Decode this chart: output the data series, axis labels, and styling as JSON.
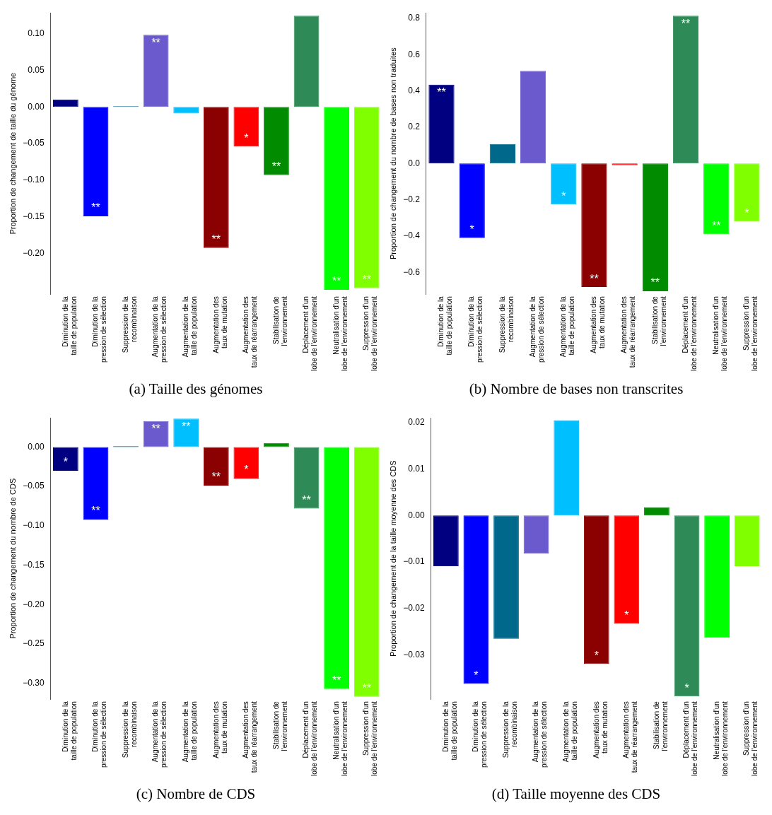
{
  "chart_data": [
    {
      "type": "bar",
      "title": "(a) Taille des génomes",
      "ylabel": "Proportion de changement de taille du génome",
      "categories": [
        "Diminution de la\ntaille de population",
        "Diminution de la\npression de sélection",
        "Suppression de la\nrecombinaison",
        "Augmentation de la\npression de sélection",
        "Augmentation de la\ntaille de population",
        "Augmentation des\ntaux de mutation",
        "Augmentation des\ntaux de réarrangement",
        "Stabilisation de\nl'environnement",
        "Déplacement d'un\nlobe de l'environnement",
        "Neutralisation d'un\nlobe de l'environnement",
        "Suppression d'un\nlobe de l'environnement"
      ],
      "values": [
        0.01,
        -0.149,
        0.001,
        0.098,
        -0.009,
        -0.192,
        -0.054,
        -0.093,
        0.124,
        -0.249,
        -0.247
      ],
      "colors": [
        "#000080",
        "#0000ff",
        "#00688b",
        "#6a5acd",
        "#00bfff",
        "#8b0000",
        "#ff0000",
        "#008b00",
        "#2e8b57",
        "#00ff00",
        "#7fff00"
      ],
      "ylim": [
        -0.255,
        0.128
      ],
      "yticks": [
        {
          "value": -0.2,
          "label": "−0.20"
        },
        {
          "value": -0.15,
          "label": "−0.15"
        },
        {
          "value": -0.1,
          "label": "−0.10"
        },
        {
          "value": -0.05,
          "label": "−0.05"
        },
        {
          "value": 0,
          "label": "0.00"
        },
        {
          "value": 0.05,
          "label": "0.05"
        },
        {
          "value": 0.1,
          "label": "0.10"
        }
      ],
      "annotations": [
        {
          "text": "**",
          "x": "Diminution de la\npression de sélection",
          "y": -0.149
        },
        {
          "text": "**",
          "x": "Augmentation de la\npression de sélection",
          "y": 0.098
        },
        {
          "text": "**",
          "x": "Augmentation des\ntaux de mutation",
          "y": -0.192
        },
        {
          "text": "*",
          "x": "Augmentation des\ntaux de réarrangement",
          "y": -0.054
        },
        {
          "text": "**",
          "x": "Stabilisation de\nl'environnement",
          "y": -0.093
        },
        {
          "text": "**",
          "x": "Neutralisation d'un\nlobe de l'environnement",
          "y": -0.249
        },
        {
          "text": "**",
          "x": "Suppression d'un\nlobe de l'environnement",
          "y": -0.247
        }
      ],
      "grid": false,
      "legend": false
    },
    {
      "type": "bar",
      "title": "(b) Nombre de bases non transcrites",
      "ylabel": "Proportion de changement du nombre de bases non traduites",
      "categories": [
        "Diminution de la\ntaille de population",
        "Diminution de la\npression de sélection",
        "Suppression de la\nrecombinaison",
        "Augmentation de la\npression de sélection",
        "Augmentation de la\ntaille de population",
        "Augmentation des\ntaux de mutation",
        "Augmentation des\ntaux de réarrangement",
        "Stabilisation de\nl'environnement",
        "Déplacement d'un\nlobe de l'environnement",
        "Neutralisation d'un\nlobe de l'environnement",
        "Suppression d'un\nlobe de l'environnement"
      ],
      "values": [
        0.434,
        -0.411,
        0.107,
        0.51,
        -0.226,
        -0.681,
        -0.01,
        -0.704,
        0.814,
        -0.389,
        -0.319
      ],
      "colors": [
        "#000080",
        "#0000ff",
        "#00688b",
        "#6a5acd",
        "#00bfff",
        "#8b0000",
        "#ff0000",
        "#008b00",
        "#2e8b57",
        "#00ff00",
        "#7fff00"
      ],
      "ylim": [
        -0.72,
        0.83
      ],
      "yticks": [
        {
          "value": -0.6,
          "label": "−0.6"
        },
        {
          "value": -0.4,
          "label": "−0.4"
        },
        {
          "value": -0.2,
          "label": "−0.2"
        },
        {
          "value": 0,
          "label": "0.0"
        },
        {
          "value": 0.2,
          "label": "0.2"
        },
        {
          "value": 0.4,
          "label": "0.4"
        },
        {
          "value": 0.6,
          "label": "0.6"
        },
        {
          "value": 0.8,
          "label": "0.8"
        }
      ],
      "annotations": [
        {
          "text": "**",
          "x": "Diminution de la\ntaille de population",
          "y": 0.434
        },
        {
          "text": "*",
          "x": "Diminution de la\npression de sélection",
          "y": -0.411
        },
        {
          "text": "*",
          "x": "Augmentation de la\ntaille de population",
          "y": -0.226
        },
        {
          "text": "**",
          "x": "Augmentation des\ntaux de mutation",
          "y": -0.681
        },
        {
          "text": "**",
          "x": "Stabilisation de\nl'environnement",
          "y": -0.704
        },
        {
          "text": "**",
          "x": "Déplacement d'un\nlobe de l'environnement",
          "y": 0.814
        },
        {
          "text": "**",
          "x": "Neutralisation d'un\nlobe de l'environnement",
          "y": -0.389
        },
        {
          "text": "*",
          "x": "Suppression d'un\nlobe de l'environnement",
          "y": -0.319
        }
      ],
      "grid": false,
      "legend": false
    },
    {
      "type": "bar",
      "title": "(c) Nombre de CDS",
      "ylabel": "Proportion de changement du nombre de CDS",
      "categories": [
        "Diminution de la\ntaille de population",
        "Diminution de la\npression de sélection",
        "Suppression de la\nrecombinaison",
        "Augmentation de la\npression de sélection",
        "Augmentation de la\ntaille de population",
        "Augmentation des\ntaux de mutation",
        "Augmentation des\ntaux de réarrangement",
        "Stabilisation de\nl'environnement",
        "Déplacement d'un\nlobe de l'environnement",
        "Neutralisation d'un\nlobe de l'environnement",
        "Suppression d'un\nlobe de l'environnement"
      ],
      "values": [
        -0.03,
        -0.092,
        0.001,
        0.033,
        0.036,
        -0.049,
        -0.04,
        0.005,
        -0.078,
        -0.307,
        -0.317
      ],
      "colors": [
        "#000080",
        "#0000ff",
        "#00688b",
        "#6a5acd",
        "#00bfff",
        "#8b0000",
        "#ff0000",
        "#008b00",
        "#2e8b57",
        "#00ff00",
        "#7fff00"
      ],
      "ylim": [
        -0.32,
        0.037
      ],
      "yticks": [
        {
          "value": -0.3,
          "label": "−0.30"
        },
        {
          "value": -0.25,
          "label": "−0.25"
        },
        {
          "value": -0.2,
          "label": "−0.20"
        },
        {
          "value": -0.15,
          "label": "−0.15"
        },
        {
          "value": -0.1,
          "label": "−0.10"
        },
        {
          "value": -0.05,
          "label": "−0.05"
        },
        {
          "value": 0,
          "label": "0.00"
        }
      ],
      "annotations": [
        {
          "text": "*",
          "x": "Diminution de la\ntaille de population",
          "y": -0.03
        },
        {
          "text": "**",
          "x": "Diminution de la\npression de sélection",
          "y": -0.092
        },
        {
          "text": "**",
          "x": "Augmentation de la\npression de sélection",
          "y": 0.033
        },
        {
          "text": "**",
          "x": "Augmentation de la\ntaille de population",
          "y": 0.036
        },
        {
          "text": "**",
          "x": "Augmentation des\ntaux de mutation",
          "y": -0.049
        },
        {
          "text": "*",
          "x": "Augmentation des\ntaux de réarrangement",
          "y": -0.04
        },
        {
          "text": "**",
          "x": "Déplacement d'un\nlobe de l'environnement",
          "y": -0.078
        },
        {
          "text": "**",
          "x": "Neutralisation d'un\nlobe de l'environnement",
          "y": -0.307
        },
        {
          "text": "**",
          "x": "Suppression d'un\nlobe de l'environnement",
          "y": -0.317
        }
      ],
      "grid": false,
      "legend": false
    },
    {
      "type": "bar",
      "title": "(d) Taille moyenne des CDS",
      "ylabel": "Proportion de changement de la taille moyenne des CDS",
      "categories": [
        "Diminution de la\ntaille de population",
        "Diminution de la\npression de sélection",
        "Suppression de la\nrecombinaison",
        "Augmentation de la\npression de sélection",
        "Augmentation de la\ntaille de population",
        "Augmentation des\ntaux de mutation",
        "Augmentation des\ntaux de réarrangement",
        "Stabilisation de\nl'environnement",
        "Déplacement d'un\nlobe de l'environnement",
        "Neutralisation d'un\nlobe de l'environnement",
        "Suppression d'un\nlobe de l'environnement"
      ],
      "values": [
        -0.0109,
        -0.0362,
        -0.0265,
        -0.0082,
        0.0205,
        -0.0319,
        -0.0233,
        0.0018,
        -0.0389,
        -0.0263,
        -0.0109
      ],
      "colors": [
        "#000080",
        "#0000ff",
        "#00688b",
        "#6a5acd",
        "#00bfff",
        "#8b0000",
        "#ff0000",
        "#008b00",
        "#2e8b57",
        "#00ff00",
        "#7fff00"
      ],
      "ylim": [
        -0.0395,
        0.021
      ],
      "yticks": [
        {
          "value": -0.03,
          "label": "−0.03"
        },
        {
          "value": -0.02,
          "label": "−0.02"
        },
        {
          "value": -0.01,
          "label": "−0.01"
        },
        {
          "value": 0,
          "label": "0.00"
        },
        {
          "value": 0.01,
          "label": "0.01"
        },
        {
          "value": 0.02,
          "label": "0.02"
        }
      ],
      "annotations": [
        {
          "text": "*",
          "x": "Diminution de la\npression de sélection",
          "y": -0.0362
        },
        {
          "text": "*",
          "x": "Augmentation des\ntaux de mutation",
          "y": -0.0319
        },
        {
          "text": "*",
          "x": "Augmentation des\ntaux de réarrangement",
          "y": -0.0233
        },
        {
          "text": "*",
          "x": "Déplacement d'un\nlobe de l'environnement",
          "y": -0.0389
        }
      ],
      "grid": false,
      "legend": false
    }
  ]
}
